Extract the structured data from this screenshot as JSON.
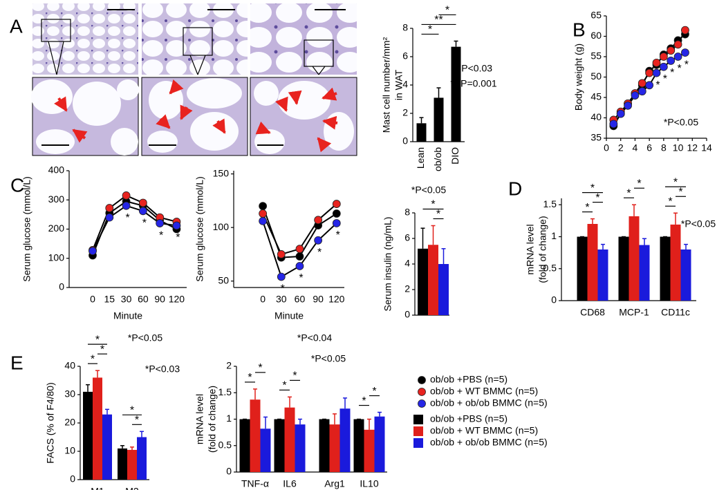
{
  "chart_data": [
    {
      "type": "bar",
      "panel": "A",
      "ylabel": [
        "Mast cell number/mm²",
        "in WAT"
      ],
      "categories": [
        "Lean",
        "ob/ob",
        "DIO"
      ],
      "values": [
        1.3,
        3.1,
        6.7
      ],
      "errors": [
        0.4,
        0.7,
        0.4
      ],
      "color": "#000000",
      "ylim": [
        0,
        8
      ],
      "yticks": [
        0,
        2,
        4,
        6,
        8
      ],
      "brackets": [
        {
          "label": "*",
          "from": 0,
          "to": 1
        },
        {
          "label": "**",
          "from": 0,
          "to": 2
        },
        {
          "label": "*",
          "from": 1,
          "to": 2
        }
      ],
      "annotations": [
        "* P<0.03",
        "** P=0.001"
      ]
    },
    {
      "type": "line",
      "panel": "B",
      "ylabel": "Body weight (g)",
      "x": [
        1,
        2,
        3,
        4,
        5,
        6,
        7,
        8,
        9,
        10,
        11
      ],
      "series": [
        {
          "name": "ob/ob +PBS (n=5)",
          "color": "#000000",
          "values": [
            38,
            41,
            43.5,
            46,
            48,
            51.5,
            53,
            55.5,
            57,
            59,
            60.5
          ]
        },
        {
          "name": "ob/ob + WT BMMC (n=5)",
          "color": "#e8231f",
          "values": [
            39.5,
            41.5,
            43.5,
            46,
            48.5,
            51,
            53.5,
            55,
            56.5,
            58,
            61.5
          ]
        },
        {
          "name": "ob/ob + ob/ob BMMC (n=5)",
          "color": "#2626e6",
          "values": [
            38.5,
            41,
            43,
            45.5,
            46.5,
            48,
            51,
            52.5,
            54,
            55,
            56
          ],
          "point_labels": [
            null,
            null,
            null,
            null,
            null,
            null,
            "*",
            "*",
            "*",
            "*",
            "*"
          ]
        }
      ],
      "xlim": [
        0,
        14
      ],
      "xticks": [
        0,
        2,
        4,
        6,
        8,
        10,
        12,
        14
      ],
      "ylim": [
        35,
        65
      ],
      "yticks": [
        35,
        40,
        45,
        50,
        55,
        60,
        65
      ],
      "line_color": "#000000",
      "annotations": [
        "*P<0.05"
      ]
    },
    {
      "type": "line",
      "panel": "C",
      "ylabel": "Serum glucose (mmol/L)",
      "xlabel": "Minute",
      "categories": [
        "0",
        "15",
        "30",
        "60",
        "90",
        "120"
      ],
      "series": [
        {
          "color": "#000000",
          "values": [
            110,
            255,
            295,
            280,
            230,
            200
          ]
        },
        {
          "color": "#e8231f",
          "values": [
            128,
            272,
            315,
            290,
            240,
            225
          ]
        },
        {
          "color": "#2626e6",
          "values": [
            125,
            240,
            280,
            262,
            220,
            212
          ],
          "point_labels": [
            null,
            null,
            "*",
            "*",
            "*",
            "*"
          ]
        }
      ],
      "ylim": [
        0,
        400
      ],
      "yticks": [
        0,
        100,
        200,
        300,
        400
      ],
      "line_color": "#000000",
      "annotations": [
        "*P<0.05"
      ]
    },
    {
      "type": "line",
      "ylabel": "Serum glucose (mmol/L)",
      "xlabel": "Minute",
      "categories": [
        "0",
        "30",
        "60",
        "90",
        "120"
      ],
      "series": [
        {
          "color": "#000000",
          "values": [
            120,
            72,
            73,
            102,
            113
          ]
        },
        {
          "color": "#e8231f",
          "values": [
            113,
            75,
            80,
            107,
            122
          ]
        },
        {
          "color": "#2626e6",
          "values": [
            106,
            54,
            64,
            88,
            104
          ],
          "point_labels": [
            null,
            "*",
            "*",
            "*",
            "*"
          ]
        }
      ],
      "ylim": [
        44,
        153
      ],
      "yticks": [
        50,
        100,
        150
      ],
      "line_color": "#000000",
      "annotations": [
        "*P<0.04"
      ]
    },
    {
      "type": "bar",
      "ylabel": "Serum insulin (ng/mL)",
      "categories": [
        null
      ],
      "series": [
        {
          "color": "#000000",
          "values": [
            5.2
          ],
          "errors": [
            1.6
          ]
        },
        {
          "color": "#e0201b",
          "values": [
            5.5
          ],
          "errors": [
            1.5
          ]
        },
        {
          "color": "#1a1adc",
          "values": [
            4.0
          ],
          "errors": [
            1.2
          ]
        }
      ],
      "ylim": [
        0,
        8
      ],
      "yticks": [
        0,
        2,
        4,
        6,
        8
      ],
      "brackets": [
        {
          "label": "*",
          "from": 1,
          "to": 2
        },
        {
          "label": "*",
          "from": 0,
          "to": 2
        }
      ],
      "annotations": [
        "*P<0.05"
      ]
    },
    {
      "type": "bar",
      "panel": "D",
      "ylabel": [
        "mRNA level",
        "(fold of change)"
      ],
      "categories": [
        "CD68",
        "MCP-1",
        "CD11c"
      ],
      "series": [
        {
          "color": "#000000",
          "values": [
            1,
            1,
            1
          ],
          "errors": [
            0,
            0,
            0
          ]
        },
        {
          "color": "#e0201b",
          "values": [
            1.2,
            1.32,
            1.19
          ],
          "errors": [
            0.08,
            0.18,
            0.18
          ]
        },
        {
          "color": "#1a1adc",
          "values": [
            0.8,
            0.87,
            0.8
          ],
          "errors": [
            0.08,
            0.1,
            0.08
          ]
        }
      ],
      "ylim": [
        0,
        1.6
      ],
      "yticks": [
        0,
        0.5,
        1,
        1.5
      ],
      "brackets": [
        {
          "label": "*",
          "category": 0,
          "from": 0,
          "to": 1
        },
        {
          "label": "*",
          "category": 0,
          "from": 1,
          "to": 2
        },
        {
          "label": "*",
          "category": 0,
          "from": 0,
          "to": 2
        },
        {
          "label": "*",
          "category": 1,
          "from": 0,
          "to": 1
        },
        {
          "label": "*",
          "category": 1,
          "from": 1,
          "to": 2
        },
        {
          "label": "*",
          "category": 2,
          "from": 0,
          "to": 1
        },
        {
          "label": "*",
          "category": 2,
          "from": 1,
          "to": 2
        },
        {
          "label": "*",
          "category": 2,
          "from": 0,
          "to": 2
        }
      ],
      "annotations": [
        "*P<0.05"
      ]
    },
    {
      "type": "bar",
      "panel": "E",
      "ylabel": "FACS (% of F4/80)",
      "categories": [
        "M1",
        "M2"
      ],
      "series": [
        {
          "color": "#000000",
          "values": [
            31,
            11
          ],
          "errors": [
            2.5,
            1
          ]
        },
        {
          "color": "#e0201b",
          "values": [
            36,
            10.5
          ],
          "errors": [
            2.5,
            1
          ]
        },
        {
          "color": "#1a1adc",
          "values": [
            23,
            15
          ],
          "errors": [
            1.8,
            2
          ]
        }
      ],
      "ylim": [
        0,
        40
      ],
      "yticks": [
        0,
        10,
        20,
        30,
        40
      ],
      "brackets": [
        {
          "label": "*",
          "category": 0,
          "from": 0,
          "to": 1
        },
        {
          "label": "*",
          "category": 0,
          "from": 1,
          "to": 2
        },
        {
          "label": "*",
          "category": 0,
          "from": 0,
          "to": 2
        },
        {
          "label": "*",
          "category": 1,
          "from": 1,
          "to": 2
        },
        {
          "label": "*",
          "category": 1,
          "from": 0,
          "to": 2
        }
      ],
      "annotations": [
        "*P<0.03"
      ]
    },
    {
      "type": "bar",
      "ylabel": [
        "mRNA level",
        "(fold of change)"
      ],
      "categories": [
        "TNF-α",
        "IL6",
        "Arg1",
        "IL10"
      ],
      "series": [
        {
          "name": "ob/ob +PBS (n=5)",
          "color": "#000000",
          "values": [
            1,
            1,
            1,
            1
          ],
          "errors": [
            0,
            0,
            0,
            0
          ]
        },
        {
          "name": "ob/ob + WT BMMC (n=5)",
          "color": "#e0201b",
          "values": [
            1.37,
            1.22,
            0.9,
            0.8
          ],
          "errors": [
            0.2,
            0.2,
            0.2,
            0.2
          ]
        },
        {
          "name": "ob/ob + ob/ob BMMC (n=5)",
          "color": "#1a1adc",
          "values": [
            0.82,
            0.9,
            1.2,
            1.05
          ],
          "errors": [
            0.22,
            0.1,
            0.2,
            0.08
          ]
        }
      ],
      "ylim": [
        0,
        2
      ],
      "yticks": [
        0,
        0.5,
        1,
        1.5,
        2
      ],
      "brackets": [
        {
          "label": "*",
          "category": 0,
          "from": 0,
          "to": 1
        },
        {
          "label": "*",
          "category": 0,
          "from": 1,
          "to": 2
        },
        {
          "label": "*",
          "category": 1,
          "from": 0,
          "to": 1
        },
        {
          "label": "*",
          "category": 1,
          "from": 1,
          "to": 2
        },
        {
          "label": "*",
          "category": 3,
          "from": 0,
          "to": 1
        },
        {
          "label": "*",
          "category": 3,
          "from": 1,
          "to": 2
        }
      ],
      "annotations": [
        "*P<0.05"
      ]
    }
  ]
}
